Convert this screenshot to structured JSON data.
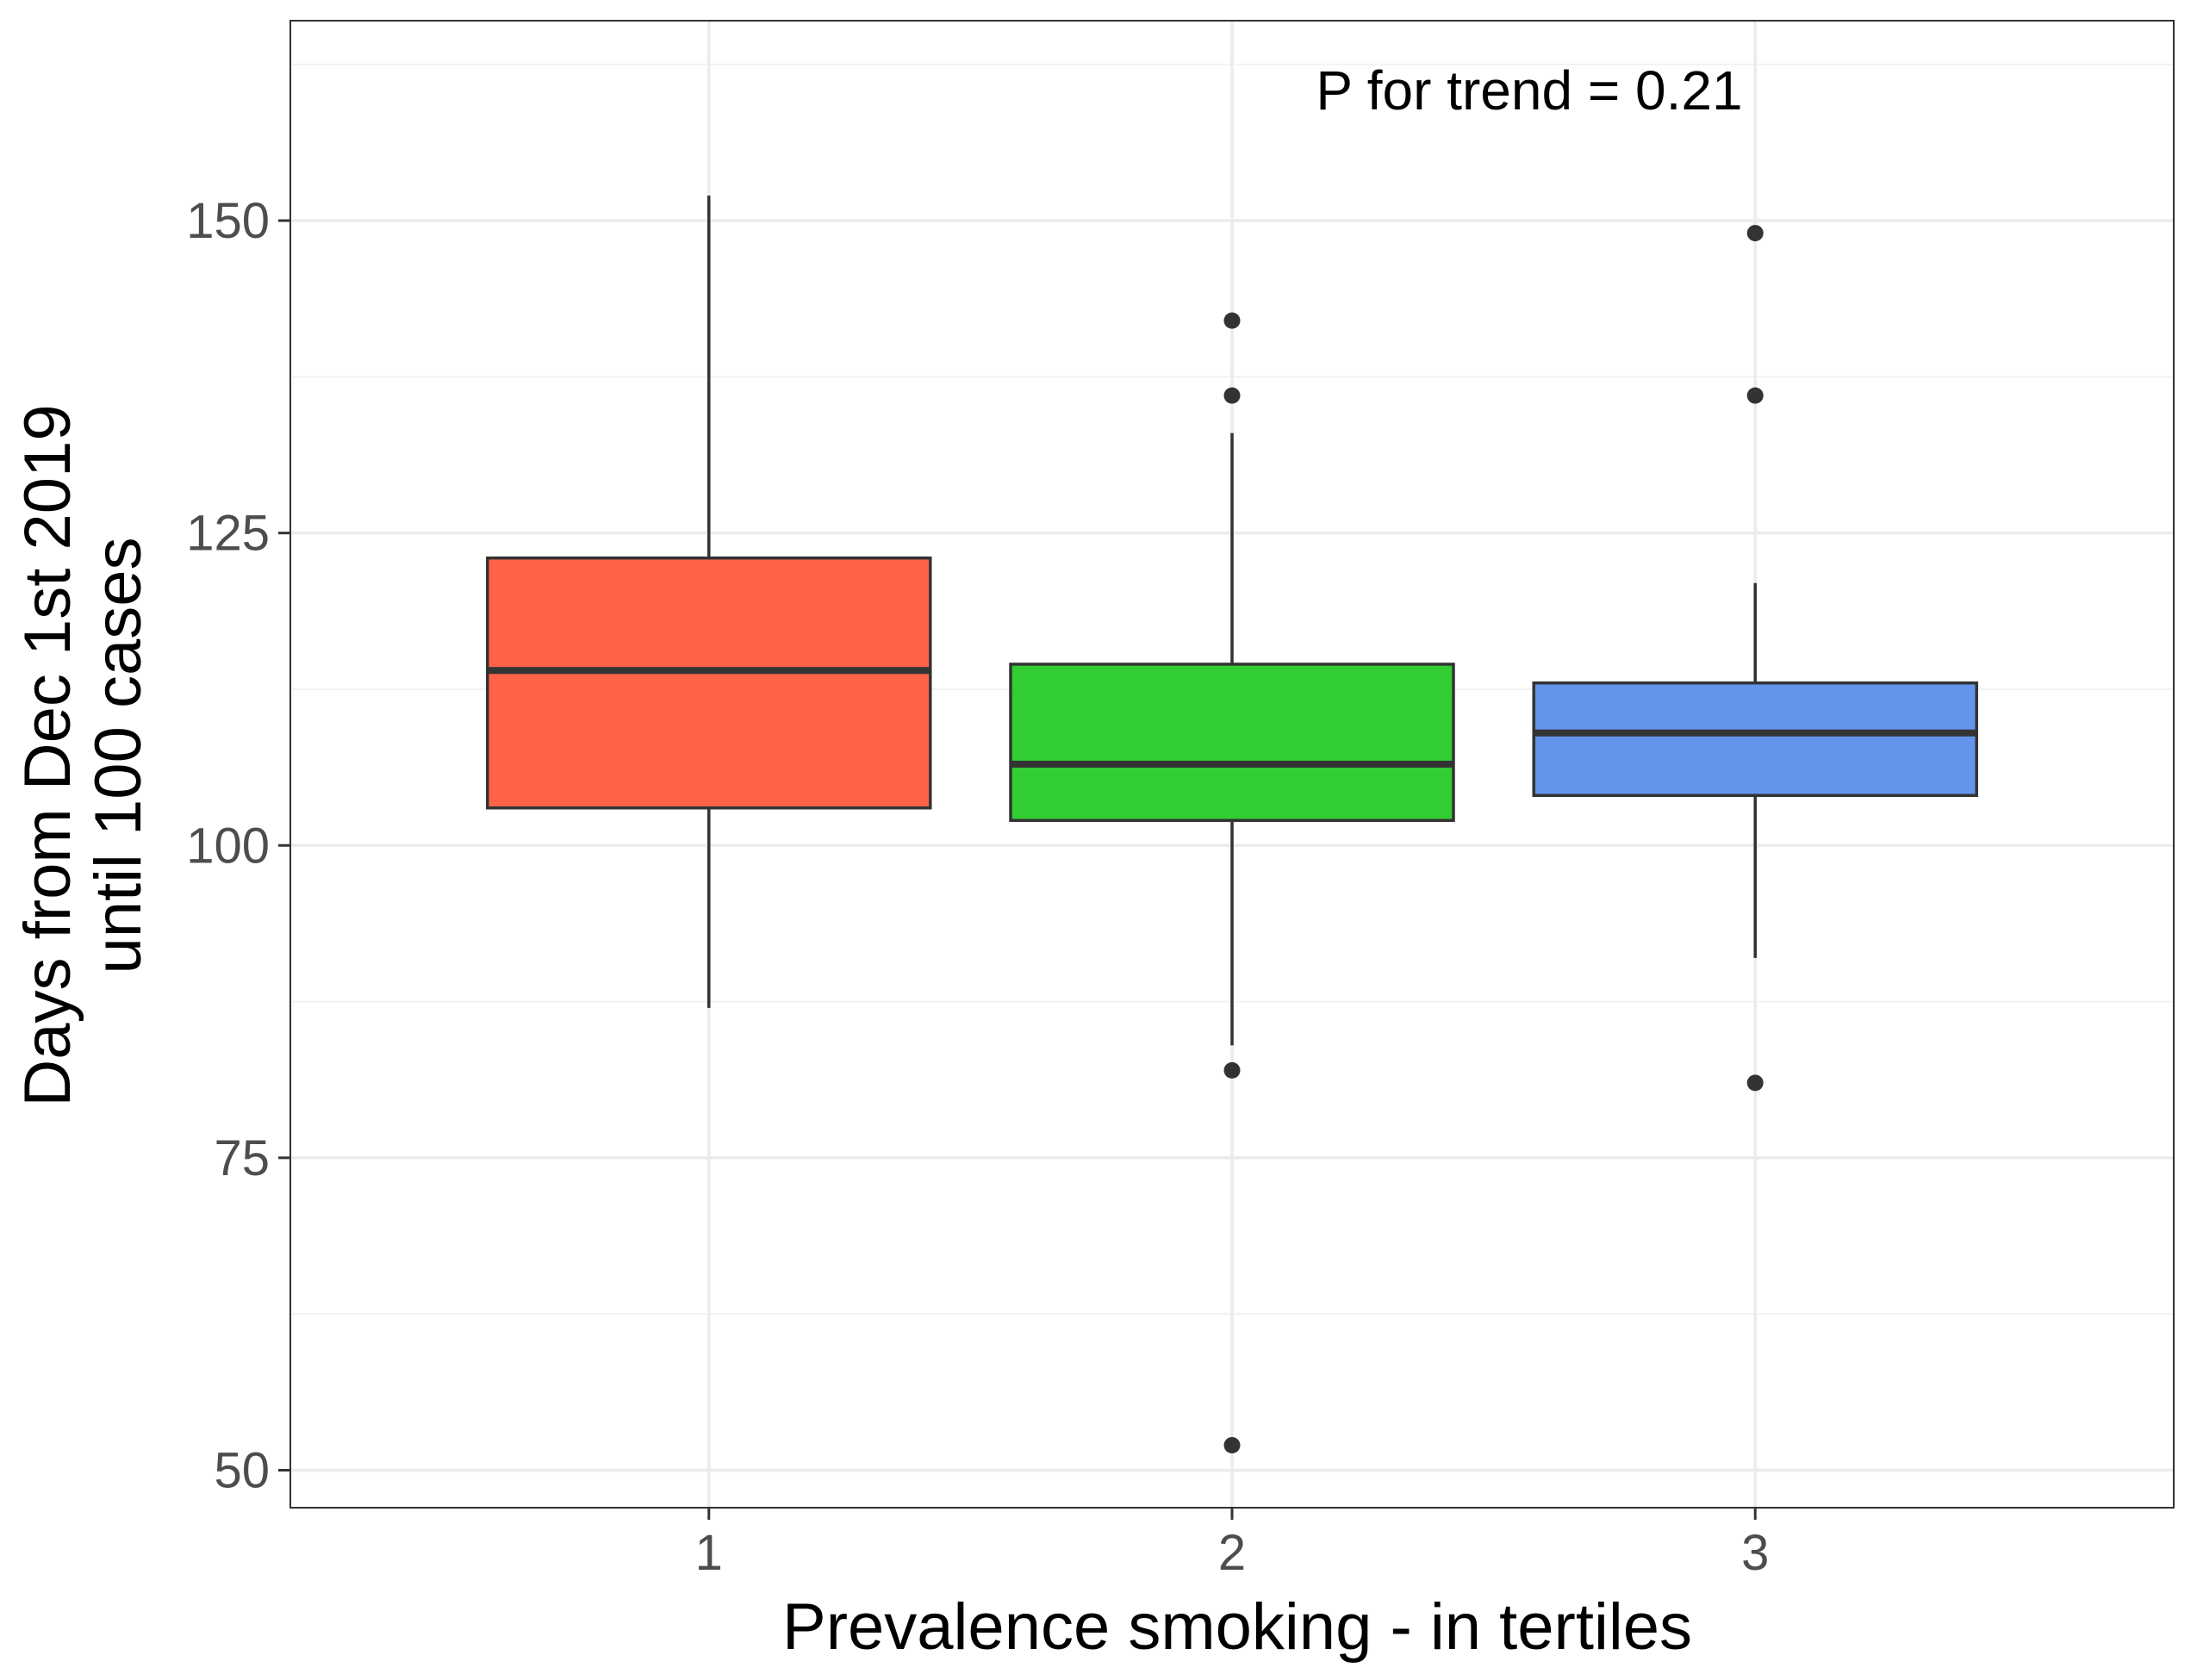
{
  "chart_data": {
    "type": "boxplot",
    "title": "",
    "xlabel": "Prevalence smoking - in tertiles",
    "ylabel_lines": [
      "Days from Dec 1st 2019",
      "until 100 cases"
    ],
    "ylim": [
      47,
      166
    ],
    "yticks": [
      50,
      75,
      100,
      125,
      150
    ],
    "categories": [
      "1",
      "2",
      "3"
    ],
    "grid": true,
    "annotation": "P for trend = 0.21",
    "boxes": [
      {
        "category": "1",
        "whisker_low": 87,
        "q1": 103,
        "median": 114,
        "q3": 123,
        "whisker_high": 152,
        "outliers": [],
        "color": "#FF6347"
      },
      {
        "category": "2",
        "whisker_low": 84,
        "q1": 102,
        "median": 106.5,
        "q3": 114.5,
        "whisker_high": 133,
        "outliers": [
          52,
          82,
          136,
          142
        ],
        "color": "#32CD32"
      },
      {
        "category": "3",
        "whisker_low": 91,
        "q1": 104,
        "median": 109,
        "q3": 113,
        "whisker_high": 121,
        "outliers": [
          81,
          136,
          149
        ],
        "color": "#6495ED"
      }
    ]
  }
}
